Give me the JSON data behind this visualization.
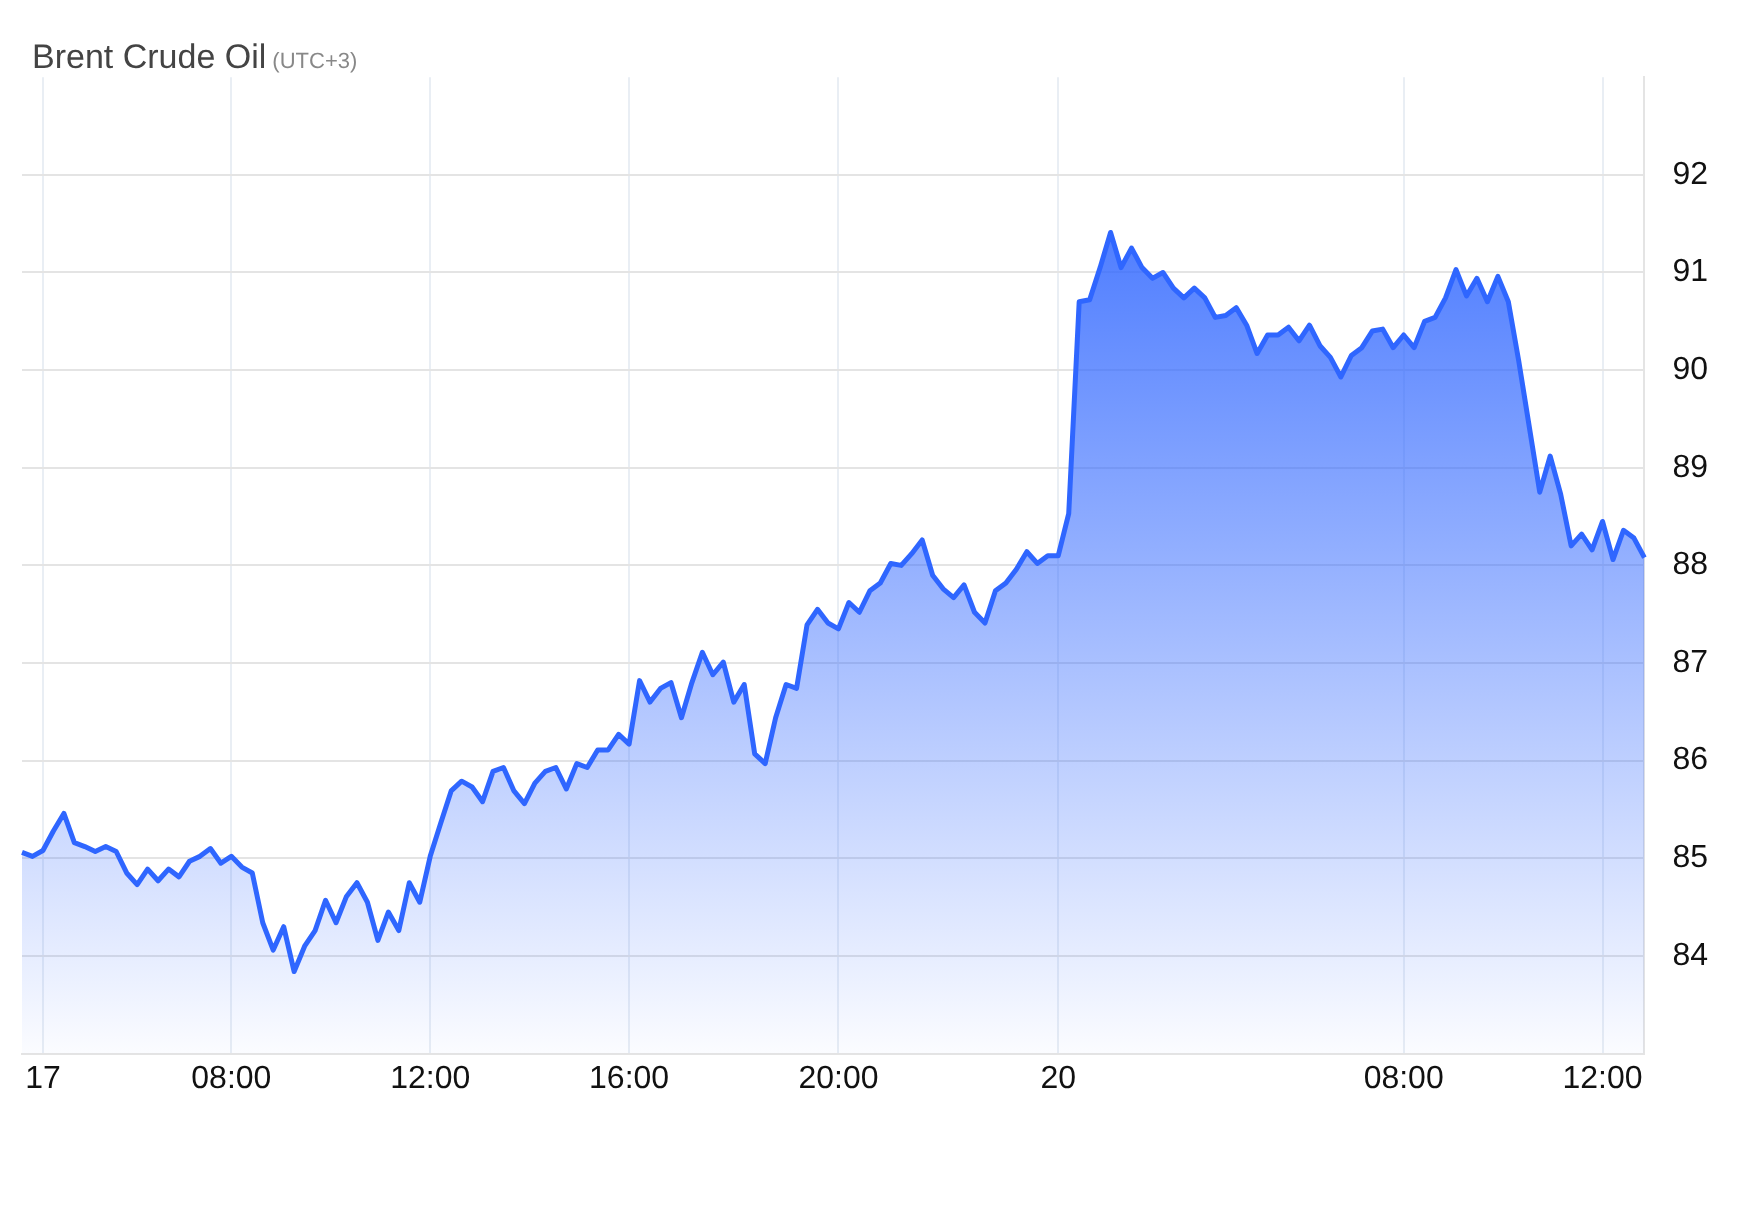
{
  "chart_data": {
    "type": "area",
    "title": "Brent Crude Oil",
    "subtitle": "(UTC+3)",
    "categories": [
      null,
      null,
      "17",
      null,
      null,
      null,
      null,
      null,
      null,
      null,
      null,
      null,
      null,
      null,
      null,
      null,
      null,
      null,
      null,
      null,
      "08:00",
      null,
      null,
      null,
      null,
      null,
      null,
      null,
      null,
      null,
      null,
      null,
      null,
      null,
      null,
      null,
      null,
      null,
      null,
      "12:00",
      null,
      null,
      null,
      null,
      null,
      null,
      null,
      null,
      null,
      null,
      null,
      null,
      null,
      null,
      null,
      null,
      null,
      null,
      "16:00",
      null,
      null,
      null,
      null,
      null,
      null,
      null,
      null,
      null,
      null,
      null,
      null,
      null,
      null,
      null,
      null,
      null,
      null,
      null,
      "20:00",
      null,
      null,
      null,
      null,
      null,
      null,
      null,
      null,
      null,
      null,
      null,
      null,
      null,
      null,
      null,
      null,
      null,
      null,
      null,
      null,
      "20",
      null,
      null,
      null,
      null,
      null,
      null,
      null,
      null,
      null,
      null,
      null,
      null,
      null,
      null,
      null,
      null,
      null,
      null,
      null,
      null,
      null,
      null,
      null,
      null,
      null,
      null,
      null,
      null,
      null,
      null,
      null,
      null,
      "08:00",
      null,
      null,
      null,
      null,
      null,
      null,
      null,
      null,
      null,
      null,
      null,
      null,
      null,
      null,
      null,
      null,
      null,
      null,
      "12:00",
      null,
      null,
      null,
      null
    ],
    "values": [
      85.06,
      85.02,
      85.08,
      85.28,
      85.46,
      85.16,
      85.12,
      85.07,
      85.12,
      85.07,
      84.85,
      84.73,
      84.89,
      84.77,
      84.89,
      84.81,
      84.97,
      85.02,
      85.1,
      84.95,
      85.02,
      84.91,
      84.85,
      84.34,
      84.06,
      84.3,
      83.84,
      84.1,
      84.26,
      84.57,
      84.34,
      84.61,
      84.75,
      84.55,
      84.16,
      84.45,
      84.26,
      84.75,
      84.55,
      85.02,
      85.36,
      85.69,
      85.79,
      85.73,
      85.58,
      85.89,
      85.93,
      85.69,
      85.56,
      85.77,
      85.89,
      85.93,
      85.71,
      85.97,
      85.93,
      86.11,
      86.11,
      86.27,
      86.17,
      86.82,
      86.6,
      86.74,
      86.8,
      86.44,
      86.8,
      87.11,
      86.88,
      87.01,
      86.6,
      86.78,
      86.07,
      85.97,
      86.44,
      86.78,
      86.74,
      87.39,
      87.55,
      87.41,
      87.35,
      87.62,
      87.52,
      87.74,
      87.82,
      88.02,
      88.0,
      88.12,
      88.26,
      87.9,
      87.76,
      87.67,
      87.8,
      87.52,
      87.41,
      87.74,
      87.82,
      87.96,
      88.14,
      88.02,
      88.1,
      88.1,
      88.53,
      90.7,
      90.72,
      91.05,
      91.41,
      91.05,
      91.25,
      91.05,
      90.94,
      91.0,
      90.84,
      90.74,
      90.84,
      90.74,
      90.54,
      90.56,
      90.64,
      90.46,
      90.17,
      90.36,
      90.36,
      90.44,
      90.3,
      90.46,
      90.25,
      90.13,
      89.93,
      90.15,
      90.23,
      90.4,
      90.42,
      90.23,
      90.36,
      90.23,
      90.5,
      90.54,
      90.74,
      91.03,
      90.76,
      90.94,
      90.7,
      90.96,
      90.7,
      90.09,
      89.42,
      88.75,
      89.12,
      88.73,
      88.2,
      88.32,
      88.16,
      88.45,
      88.06,
      88.36,
      88.28,
      88.08
    ],
    "color": "#2f66ff",
    "ylim": [
      83,
      93
    ],
    "yticks": [
      84,
      85,
      86,
      87,
      88,
      89,
      90,
      91,
      92
    ],
    "grid": true
  }
}
